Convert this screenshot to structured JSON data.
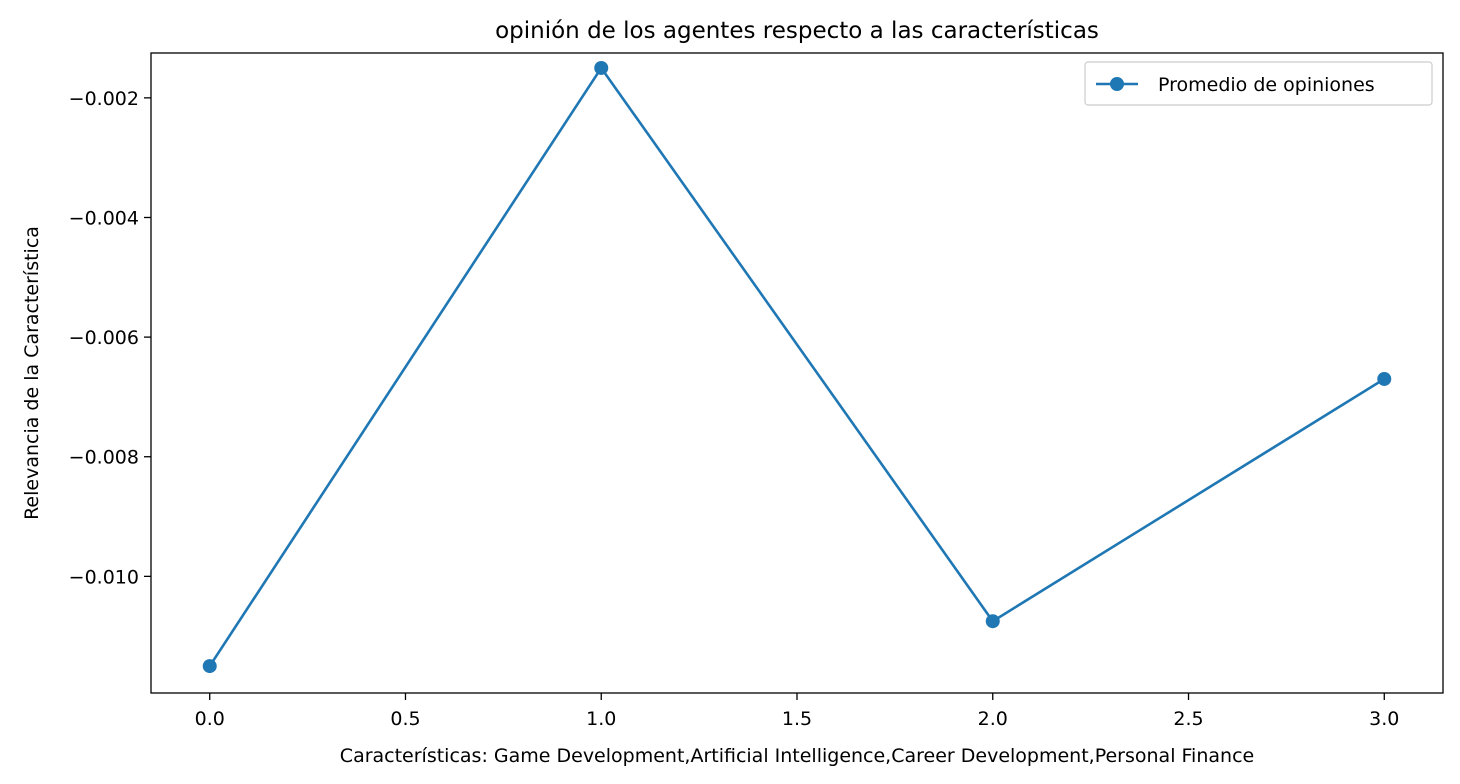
{
  "chart_data": {
    "type": "line",
    "title": "opinión de los agentes respecto a las características",
    "xlabel": "Características: Game Development,Artificial Intelligence,Career Development,Personal Finance",
    "ylabel": "Relevancia de la Característica",
    "xlim": [
      -0.15,
      3.15
    ],
    "ylim": [
      -0.01195,
      -0.00125
    ],
    "x_ticks": [
      0.0,
      0.5,
      1.0,
      1.5,
      2.0,
      2.5,
      3.0
    ],
    "x_tick_labels": [
      "0.0",
      "0.5",
      "1.0",
      "1.5",
      "2.0",
      "2.5",
      "3.0"
    ],
    "y_ticks": [
      -0.002,
      -0.004,
      -0.006,
      -0.008,
      -0.01
    ],
    "y_tick_labels": [
      "−0.002",
      "−0.004",
      "−0.006",
      "−0.008",
      "−0.010"
    ],
    "grid": false,
    "legend_position": "top-right",
    "series": [
      {
        "name": "Promedio de opiniones",
        "color": "#1f77b4",
        "marker": "circle",
        "x": [
          0,
          1,
          2,
          3
        ],
        "y": [
          -0.0115,
          -0.0015,
          -0.01075,
          -0.0067
        ]
      }
    ]
  }
}
